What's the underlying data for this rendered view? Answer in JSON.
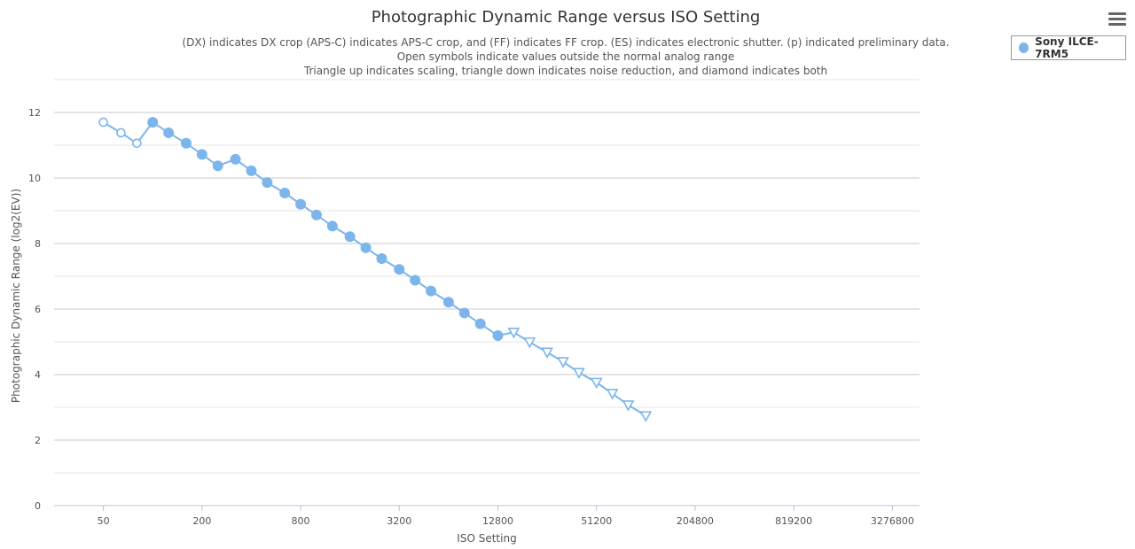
{
  "chart_data": {
    "type": "line",
    "title": "Photographic Dynamic Range versus ISO Setting",
    "subtitle": [
      "(DX) indicates DX crop (APS-C) indicates APS-C crop, and (FF) indicates FF crop. (ES) indicates electronic shutter. (p) indicated preliminary data.",
      "Open symbols indicate values outside the normal analog range",
      "Triangle up indicates scaling, triangle down indicates noise reduction, and diamond indicates both"
    ],
    "xlabel": "ISO Setting",
    "ylabel": "Photographic Dynamic Range (log2(EV))",
    "x_scale": "log",
    "xlim": [
      25,
      4800000
    ],
    "ylim": [
      0,
      13
    ],
    "x_ticks": [
      50,
      200,
      800,
      3200,
      12800,
      51200,
      204800,
      819200,
      3276800
    ],
    "y_ticks": [
      0,
      2,
      4,
      6,
      8,
      10,
      12
    ],
    "grid": true,
    "legend_position": "top-right",
    "series": [
      {
        "name": "Sony ILCE-7RM5",
        "color": "#7cb5ec",
        "points": [
          {
            "x": 50,
            "y": 11.7,
            "marker": "open-circle"
          },
          {
            "x": 64,
            "y": 11.38,
            "marker": "open-circle"
          },
          {
            "x": 80,
            "y": 11.06,
            "marker": "open-circle"
          },
          {
            "x": 100,
            "y": 11.7,
            "marker": "circle"
          },
          {
            "x": 125,
            "y": 11.38,
            "marker": "circle"
          },
          {
            "x": 160,
            "y": 11.06,
            "marker": "circle"
          },
          {
            "x": 200,
            "y": 10.72,
            "marker": "circle"
          },
          {
            "x": 250,
            "y": 10.37,
            "marker": "circle"
          },
          {
            "x": 320,
            "y": 10.57,
            "marker": "circle"
          },
          {
            "x": 400,
            "y": 10.22,
            "marker": "circle"
          },
          {
            "x": 500,
            "y": 9.86,
            "marker": "circle"
          },
          {
            "x": 640,
            "y": 9.54,
            "marker": "circle"
          },
          {
            "x": 800,
            "y": 9.2,
            "marker": "circle"
          },
          {
            "x": 1000,
            "y": 8.87,
            "marker": "circle"
          },
          {
            "x": 1250,
            "y": 8.53,
            "marker": "circle"
          },
          {
            "x": 1600,
            "y": 8.21,
            "marker": "circle"
          },
          {
            "x": 2000,
            "y": 7.87,
            "marker": "circle"
          },
          {
            "x": 2500,
            "y": 7.54,
            "marker": "circle"
          },
          {
            "x": 3200,
            "y": 7.21,
            "marker": "circle"
          },
          {
            "x": 4000,
            "y": 6.88,
            "marker": "circle"
          },
          {
            "x": 5000,
            "y": 6.55,
            "marker": "circle"
          },
          {
            "x": 6400,
            "y": 6.21,
            "marker": "circle"
          },
          {
            "x": 8000,
            "y": 5.88,
            "marker": "circle"
          },
          {
            "x": 10000,
            "y": 5.55,
            "marker": "circle"
          },
          {
            "x": 12800,
            "y": 5.19,
            "marker": "circle"
          },
          {
            "x": 16000,
            "y": 5.29,
            "marker": "triangle-down"
          },
          {
            "x": 20000,
            "y": 4.99,
            "marker": "triangle-down"
          },
          {
            "x": 25600,
            "y": 4.68,
            "marker": "triangle-down"
          },
          {
            "x": 32000,
            "y": 4.39,
            "marker": "triangle-down"
          },
          {
            "x": 40000,
            "y": 4.06,
            "marker": "triangle-down"
          },
          {
            "x": 51200,
            "y": 3.76,
            "marker": "triangle-down"
          },
          {
            "x": 64000,
            "y": 3.42,
            "marker": "triangle-down"
          },
          {
            "x": 80000,
            "y": 3.07,
            "marker": "triangle-down"
          },
          {
            "x": 102400,
            "y": 2.74,
            "marker": "triangle-down"
          }
        ]
      }
    ]
  },
  "legend": {
    "label": "Sony ILCE-7RM5",
    "color": "#7cb5ec"
  },
  "menu": {
    "icon": "hamburger-menu-icon"
  }
}
